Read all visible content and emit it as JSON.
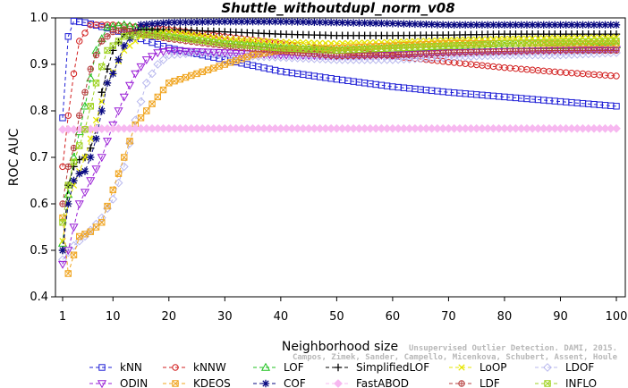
{
  "chart_data": {
    "type": "line",
    "title": "Shuttle_withoutdupl_norm_v08",
    "xlabel": "Neighborhood size",
    "ylabel": "ROC AUC",
    "xlim": [
      1,
      100
    ],
    "ylim": [
      0.4,
      1.0
    ],
    "xticks": [
      1,
      10,
      20,
      30,
      40,
      50,
      60,
      70,
      80,
      90,
      100
    ],
    "yticks": [
      0.4,
      0.5,
      0.6,
      0.7,
      0.8,
      0.9,
      1.0
    ],
    "grid": false,
    "legend_position": "bottom",
    "credit_lines": [
      "Unsupervised Outlier Detection. DAMI, 2015.",
      "Campos, Zimek, Sander, Campello, Micenkova, Schubert, Assent, Houle"
    ],
    "series": [
      {
        "name": "kNN",
        "color": "#1f1fd6",
        "marker": "square",
        "points": [
          [
            1,
            0.785
          ],
          [
            2,
            0.96
          ],
          [
            3,
            0.993
          ],
          [
            5,
            0.99
          ],
          [
            10,
            0.975
          ],
          [
            15,
            0.955
          ],
          [
            20,
            0.935
          ],
          [
            30,
            0.91
          ],
          [
            40,
            0.885
          ],
          [
            50,
            0.868
          ],
          [
            60,
            0.852
          ],
          [
            70,
            0.84
          ],
          [
            80,
            0.83
          ],
          [
            90,
            0.82
          ],
          [
            100,
            0.81
          ]
        ]
      },
      {
        "name": "kNNW",
        "color": "#d21f1f",
        "marker": "circle",
        "points": [
          [
            1,
            0.68
          ],
          [
            2,
            0.79
          ],
          [
            3,
            0.88
          ],
          [
            4,
            0.95
          ],
          [
            6,
            0.985
          ],
          [
            10,
            0.985
          ],
          [
            20,
            0.975
          ],
          [
            30,
            0.96
          ],
          [
            40,
            0.945
          ],
          [
            50,
            0.93
          ],
          [
            60,
            0.918
          ],
          [
            70,
            0.905
          ],
          [
            80,
            0.893
          ],
          [
            90,
            0.883
          ],
          [
            100,
            0.875
          ]
        ]
      },
      {
        "name": "LOF",
        "color": "#1fc21f",
        "marker": "triangle-up",
        "points": [
          [
            1,
            0.515
          ],
          [
            2,
            0.62
          ],
          [
            3,
            0.7
          ],
          [
            5,
            0.81
          ],
          [
            7,
            0.93
          ],
          [
            9,
            0.98
          ],
          [
            12,
            0.985
          ],
          [
            20,
            0.965
          ],
          [
            30,
            0.945
          ],
          [
            40,
            0.935
          ],
          [
            50,
            0.93
          ],
          [
            60,
            0.935
          ],
          [
            70,
            0.938
          ],
          [
            80,
            0.94
          ],
          [
            90,
            0.94
          ],
          [
            100,
            0.942
          ]
        ]
      },
      {
        "name": "SimplifiedLOF",
        "color": "#000000",
        "marker": "plus",
        "points": [
          [
            1,
            0.5
          ],
          [
            2,
            0.64
          ],
          [
            3,
            0.68
          ],
          [
            4,
            0.695
          ],
          [
            5,
            0.7
          ],
          [
            6,
            0.72
          ],
          [
            7,
            0.76
          ],
          [
            8,
            0.84
          ],
          [
            9,
            0.89
          ],
          [
            10,
            0.93
          ],
          [
            12,
            0.965
          ],
          [
            15,
            0.975
          ],
          [
            20,
            0.975
          ],
          [
            30,
            0.97
          ],
          [
            40,
            0.965
          ],
          [
            50,
            0.962
          ],
          [
            60,
            0.962
          ],
          [
            70,
            0.963
          ],
          [
            80,
            0.965
          ],
          [
            90,
            0.965
          ],
          [
            100,
            0.965
          ]
        ]
      },
      {
        "name": "LoOP",
        "color": "#e6e600",
        "marker": "x",
        "points": [
          [
            1,
            0.52
          ],
          [
            2,
            0.6
          ],
          [
            3,
            0.64
          ],
          [
            5,
            0.7
          ],
          [
            7,
            0.78
          ],
          [
            9,
            0.86
          ],
          [
            12,
            0.93
          ],
          [
            15,
            0.96
          ],
          [
            20,
            0.97
          ],
          [
            30,
            0.955
          ],
          [
            40,
            0.948
          ],
          [
            50,
            0.945
          ],
          [
            60,
            0.948
          ],
          [
            70,
            0.952
          ],
          [
            80,
            0.955
          ],
          [
            90,
            0.957
          ],
          [
            100,
            0.958
          ]
        ]
      },
      {
        "name": "LDOF",
        "color": "#b8b8ee",
        "marker": "diamond",
        "points": [
          [
            1,
            0.48
          ],
          [
            3,
            0.51
          ],
          [
            5,
            0.53
          ],
          [
            8,
            0.57
          ],
          [
            10,
            0.61
          ],
          [
            12,
            0.68
          ],
          [
            14,
            0.78
          ],
          [
            16,
            0.86
          ],
          [
            18,
            0.9
          ],
          [
            20,
            0.92
          ],
          [
            25,
            0.925
          ],
          [
            30,
            0.92
          ],
          [
            40,
            0.915
          ],
          [
            50,
            0.91
          ],
          [
            60,
            0.91
          ],
          [
            70,
            0.915
          ],
          [
            80,
            0.92
          ],
          [
            90,
            0.92
          ],
          [
            100,
            0.925
          ]
        ]
      },
      {
        "name": "ODIN",
        "color": "#9a1fd6",
        "marker": "triangle-down",
        "points": [
          [
            1,
            0.47
          ],
          [
            2,
            0.5
          ],
          [
            3,
            0.55
          ],
          [
            4,
            0.6
          ],
          [
            6,
            0.65
          ],
          [
            8,
            0.7
          ],
          [
            10,
            0.77
          ],
          [
            12,
            0.83
          ],
          [
            14,
            0.88
          ],
          [
            16,
            0.91
          ],
          [
            18,
            0.925
          ],
          [
            20,
            0.93
          ],
          [
            30,
            0.925
          ],
          [
            40,
            0.92
          ],
          [
            50,
            0.918
          ],
          [
            60,
            0.92
          ],
          [
            70,
            0.925
          ],
          [
            80,
            0.928
          ],
          [
            90,
            0.93
          ],
          [
            100,
            0.932
          ]
        ]
      },
      {
        "name": "KDEOS",
        "color": "#f0a41e",
        "marker": "x-square",
        "points": [
          [
            1,
            0.57
          ],
          [
            2,
            0.45
          ],
          [
            3,
            0.49
          ],
          [
            4,
            0.53
          ],
          [
            6,
            0.54
          ],
          [
            8,
            0.56
          ],
          [
            10,
            0.63
          ],
          [
            12,
            0.7
          ],
          [
            14,
            0.77
          ],
          [
            16,
            0.8
          ],
          [
            18,
            0.83
          ],
          [
            20,
            0.86
          ],
          [
            25,
            0.88
          ],
          [
            30,
            0.9
          ],
          [
            35,
            0.92
          ],
          [
            40,
            0.93
          ],
          [
            50,
            0.935
          ],
          [
            60,
            0.94
          ],
          [
            70,
            0.945
          ],
          [
            80,
            0.945
          ],
          [
            90,
            0.945
          ],
          [
            100,
            0.945
          ]
        ]
      },
      {
        "name": "COF",
        "color": "#0a0a82",
        "marker": "asterisk",
        "points": [
          [
            1,
            0.5
          ],
          [
            2,
            0.6
          ],
          [
            3,
            0.65
          ],
          [
            4,
            0.665
          ],
          [
            5,
            0.67
          ],
          [
            6,
            0.7
          ],
          [
            7,
            0.74
          ],
          [
            8,
            0.8
          ],
          [
            9,
            0.86
          ],
          [
            10,
            0.88
          ],
          [
            12,
            0.94
          ],
          [
            15,
            0.985
          ],
          [
            20,
            0.99
          ],
          [
            30,
            0.992
          ],
          [
            40,
            0.992
          ],
          [
            50,
            0.99
          ],
          [
            60,
            0.988
          ],
          [
            70,
            0.985
          ],
          [
            80,
            0.985
          ],
          [
            90,
            0.985
          ],
          [
            100,
            0.985
          ]
        ]
      },
      {
        "name": "FastABOD",
        "color": "#f7b8f0",
        "marker": "diamond-filled",
        "points": [
          [
            1,
            0.76
          ],
          [
            3,
            0.76
          ],
          [
            10,
            0.762
          ],
          [
            20,
            0.762
          ],
          [
            30,
            0.762
          ],
          [
            40,
            0.762
          ],
          [
            50,
            0.762
          ],
          [
            60,
            0.762
          ],
          [
            70,
            0.762
          ],
          [
            80,
            0.762
          ],
          [
            90,
            0.762
          ],
          [
            100,
            0.762
          ]
        ]
      },
      {
        "name": "LDF",
        "color": "#b53c3c",
        "marker": "circle-plus",
        "points": [
          [
            1,
            0.6
          ],
          [
            2,
            0.68
          ],
          [
            3,
            0.72
          ],
          [
            4,
            0.79
          ],
          [
            6,
            0.89
          ],
          [
            8,
            0.95
          ],
          [
            10,
            0.97
          ],
          [
            12,
            0.975
          ],
          [
            15,
            0.965
          ],
          [
            20,
            0.955
          ],
          [
            30,
            0.94
          ],
          [
            40,
            0.928
          ],
          [
            50,
            0.918
          ],
          [
            60,
            0.92
          ],
          [
            70,
            0.925
          ],
          [
            80,
            0.928
          ],
          [
            90,
            0.93
          ],
          [
            100,
            0.93
          ]
        ]
      },
      {
        "name": "INFLO",
        "color": "#9ed21f",
        "marker": "x-square",
        "points": [
          [
            1,
            0.56
          ],
          [
            2,
            0.64
          ],
          [
            3,
            0.69
          ],
          [
            5,
            0.76
          ],
          [
            7,
            0.86
          ],
          [
            9,
            0.93
          ],
          [
            12,
            0.96
          ],
          [
            15,
            0.965
          ],
          [
            20,
            0.96
          ],
          [
            30,
            0.945
          ],
          [
            40,
            0.935
          ],
          [
            50,
            0.93
          ],
          [
            60,
            0.935
          ],
          [
            70,
            0.94
          ],
          [
            80,
            0.945
          ],
          [
            90,
            0.948
          ],
          [
            100,
            0.95
          ]
        ]
      }
    ]
  }
}
